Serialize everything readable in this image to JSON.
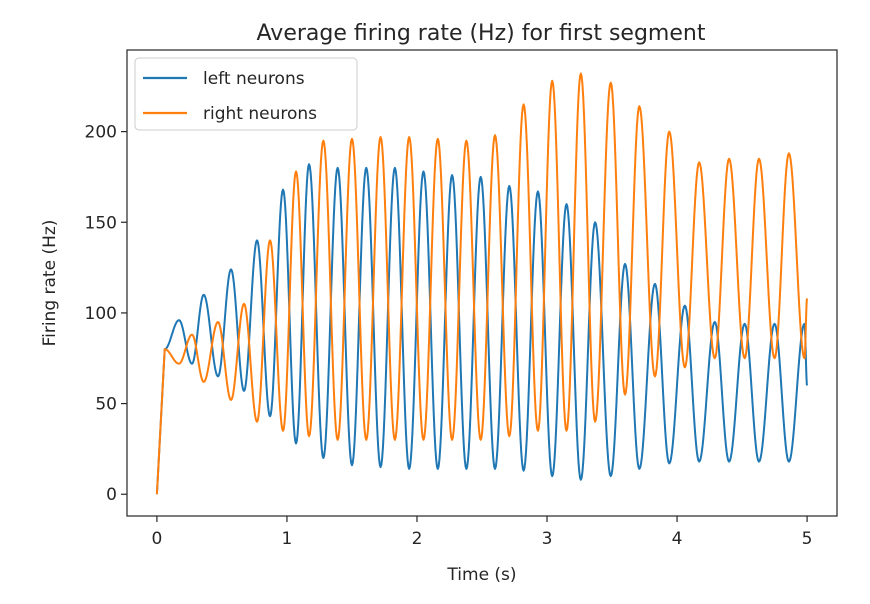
{
  "chart_data": {
    "type": "line",
    "title": "Average firing rate (Hz) for first segment",
    "xlabel": "Time (s)",
    "ylabel": "Firing rate (Hz)",
    "xlim": [
      -0.23,
      5.23
    ],
    "ylim": [
      -12,
      245
    ],
    "xticks": [
      0,
      1,
      2,
      3,
      4,
      5
    ],
    "xtick_labels": [
      "0",
      "1",
      "2",
      "3",
      "4",
      "5"
    ],
    "yticks": [
      0,
      50,
      100,
      150,
      200
    ],
    "ytick_labels": [
      "0",
      "50",
      "100",
      "150",
      "200"
    ],
    "grid": false,
    "legend_position": "upper-left",
    "colors": {
      "left neurons": "#1f77b4",
      "right neurons": "#ff7f0e"
    },
    "series": [
      {
        "name": "left neurons",
        "color": "#1f77b4",
        "description": "oscillating; amplitude grows then shrinks",
        "peaks": {
          "x": [
            0.17,
            0.36,
            0.57,
            0.77,
            0.97,
            1.17,
            1.39,
            1.61,
            1.83,
            2.05,
            2.27,
            2.49,
            2.71,
            2.93,
            3.15,
            3.37,
            3.6,
            3.83,
            4.06,
            4.29,
            4.52,
            4.75,
            4.98
          ],
          "y": [
            96,
            110,
            124,
            140,
            168,
            182,
            180,
            180,
            180,
            178,
            176,
            175,
            170,
            167,
            160,
            150,
            127,
            116,
            104,
            95,
            94,
            94,
            94
          ]
        },
        "troughs": {
          "x": [
            0.27,
            0.47,
            0.67,
            0.87,
            1.07,
            1.28,
            1.5,
            1.72,
            1.94,
            2.16,
            2.38,
            2.6,
            2.82,
            3.04,
            3.26,
            3.49,
            3.71,
            3.94,
            4.17,
            4.4,
            4.63,
            4.86
          ],
          "y": [
            72,
            65,
            57,
            43,
            28,
            20,
            16,
            15,
            14,
            14,
            14,
            14,
            13,
            10,
            8,
            10,
            14,
            17,
            18,
            18,
            18,
            18
          ]
        }
      },
      {
        "name": "right neurons",
        "color": "#ff7f0e",
        "description": "oscillating in antiphase with left neurons",
        "peaks": {
          "x": [
            0.27,
            0.47,
            0.67,
            0.87,
            1.07,
            1.28,
            1.5,
            1.72,
            1.94,
            2.16,
            2.38,
            2.6,
            2.82,
            3.04,
            3.26,
            3.49,
            3.71,
            3.94,
            4.17,
            4.4,
            4.63,
            4.86
          ],
          "y": [
            88,
            95,
            105,
            140,
            178,
            195,
            196,
            197,
            197,
            196,
            195,
            198,
            215,
            228,
            232,
            227,
            214,
            200,
            183,
            185,
            185,
            188
          ]
        },
        "troughs": {
          "x": [
            0.17,
            0.36,
            0.57,
            0.77,
            0.97,
            1.17,
            1.39,
            1.61,
            1.83,
            2.05,
            2.27,
            2.49,
            2.71,
            2.93,
            3.15,
            3.37,
            3.6,
            3.83,
            4.06,
            4.29,
            4.52,
            4.75,
            4.98
          ],
          "y": [
            72,
            62,
            52,
            40,
            35,
            32,
            30,
            30,
            30,
            30,
            30,
            30,
            32,
            35,
            35,
            40,
            55,
            65,
            70,
            75,
            75,
            75,
            75
          ]
        }
      }
    ]
  }
}
